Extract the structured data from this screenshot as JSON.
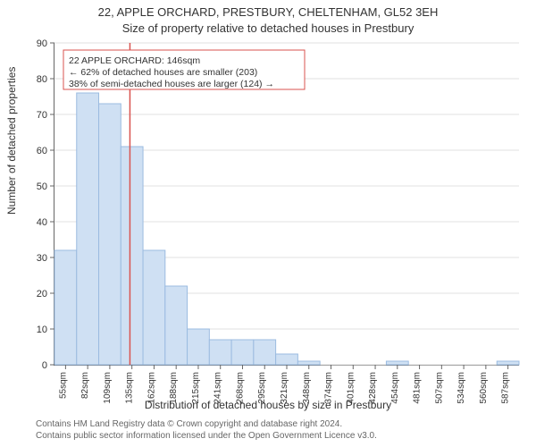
{
  "titles": {
    "address": "22, APPLE ORCHARD, PRESTBURY, CHELTENHAM, GL52 3EH",
    "subtitle": "Size of property relative to detached houses in Prestbury"
  },
  "axes": {
    "ylabel": "Number of detached properties",
    "xlabel": "Distribution of detached houses by size in Prestbury",
    "ylim": [
      0,
      90
    ],
    "ytick_step": 10,
    "yticks": [
      0,
      10,
      20,
      30,
      40,
      50,
      60,
      70,
      80,
      90
    ]
  },
  "chart": {
    "type": "histogram",
    "categories": [
      "55sqm",
      "82sqm",
      "109sqm",
      "135sqm",
      "162sqm",
      "188sqm",
      "215sqm",
      "241sqm",
      "268sqm",
      "295sqm",
      "321sqm",
      "348sqm",
      "374sqm",
      "401sqm",
      "428sqm",
      "454sqm",
      "481sqm",
      "507sqm",
      "534sqm",
      "560sqm",
      "587sqm"
    ],
    "values": [
      32,
      76,
      73,
      61,
      32,
      22,
      10,
      7,
      7,
      7,
      3,
      1,
      0,
      0,
      0,
      1,
      0,
      0,
      0,
      0,
      1
    ],
    "bar_fill": "#cfe0f3",
    "bar_stroke": "#9bbbe0",
    "grid_color": "#e0e0e0",
    "background_color": "#ffffff",
    "axis_color": "#666666"
  },
  "marker": {
    "value_sqm": 146,
    "bin_index_left_edge": 3,
    "fraction_into_bin": 0.41,
    "line_color": "#d9534f"
  },
  "annotation": {
    "line1": "22 APPLE ORCHARD: 146sqm",
    "line2": "← 62% of detached houses are smaller (203)",
    "line3": "38% of semi-detached houses are larger (124) →",
    "box_stroke": "#d9534f",
    "box_fill": "#ffffff",
    "fontsize": 10.5
  },
  "credits": {
    "line1": "Contains HM Land Registry data © Crown copyright and database right 2024.",
    "line2": "Contains public sector information licensed under the Open Government Licence v3.0."
  },
  "typography": {
    "title_fontsize": 13,
    "label_fontsize": 12,
    "tick_fontsize": 10,
    "credit_fontsize": 10
  }
}
